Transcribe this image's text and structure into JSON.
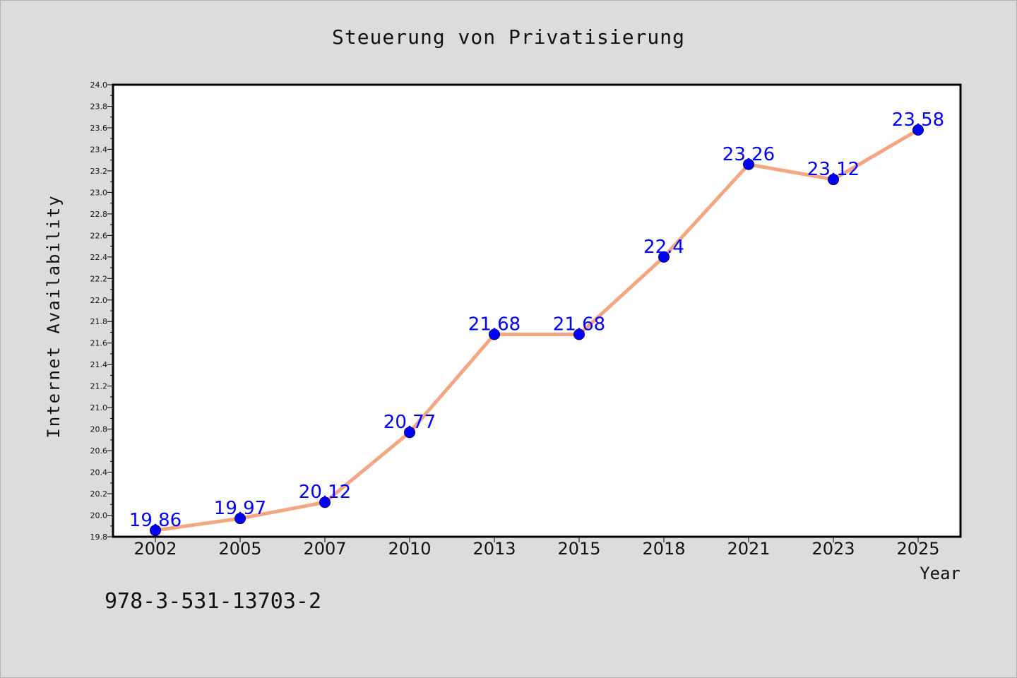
{
  "chart_data": {
    "type": "line",
    "title": "Steuerung von Privatisierung",
    "xlabel": "Year",
    "ylabel": "Internet Availability",
    "categories": [
      "2002",
      "2005",
      "2007",
      "2010",
      "2013",
      "2015",
      "2018",
      "2021",
      "2023",
      "2025"
    ],
    "series": [
      {
        "values": [
          19.86,
          19.97,
          20.12,
          20.77,
          21.68,
          21.68,
          22.4,
          23.26,
          23.12,
          23.58
        ],
        "labels": [
          "19.86",
          "19.97",
          "20.12",
          "20.77",
          "21.68",
          "21.68",
          "22.4",
          "23.26",
          "23.12",
          "23.58"
        ]
      }
    ],
    "ylim": [
      19.8,
      24.0
    ],
    "yticks": [
      "19.8",
      "20.0",
      "20.2",
      "20.4",
      "20.6",
      "20.8",
      "21.0",
      "21.2",
      "21.4",
      "21.6",
      "21.8",
      "22.0",
      "22.2",
      "22.4",
      "22.6",
      "22.8",
      "23.0",
      "23.2",
      "23.4",
      "23.6",
      "23.8",
      "24.0"
    ],
    "grid": false,
    "colors": {
      "line": "#f4a582",
      "marker": "#0000ff",
      "data_label": "#0000ff",
      "background": "#dcdcdc",
      "plot_area": "#ffffff"
    }
  },
  "footer": {
    "isbn": "978-3-531-13703-2"
  }
}
